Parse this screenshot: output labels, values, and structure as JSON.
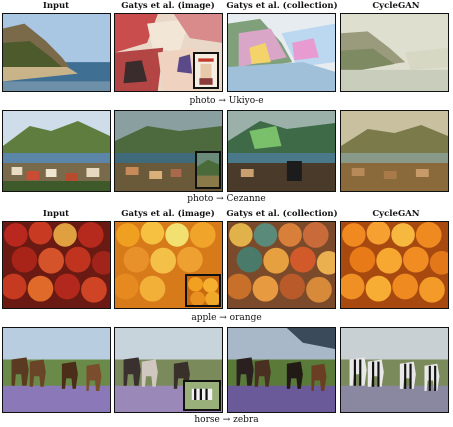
{
  "headers": {
    "input": "Input",
    "gatys_image": "Gatys et al. (image)",
    "gatys_collection": "Gatys et al. (collection)",
    "cyclegan": "CycleGAN"
  },
  "captions": {
    "row1": "photo → Ukiyo-e",
    "row2": "photo → Cezanne",
    "row3": "apple → orange",
    "row4": "horse → zebra"
  }
}
